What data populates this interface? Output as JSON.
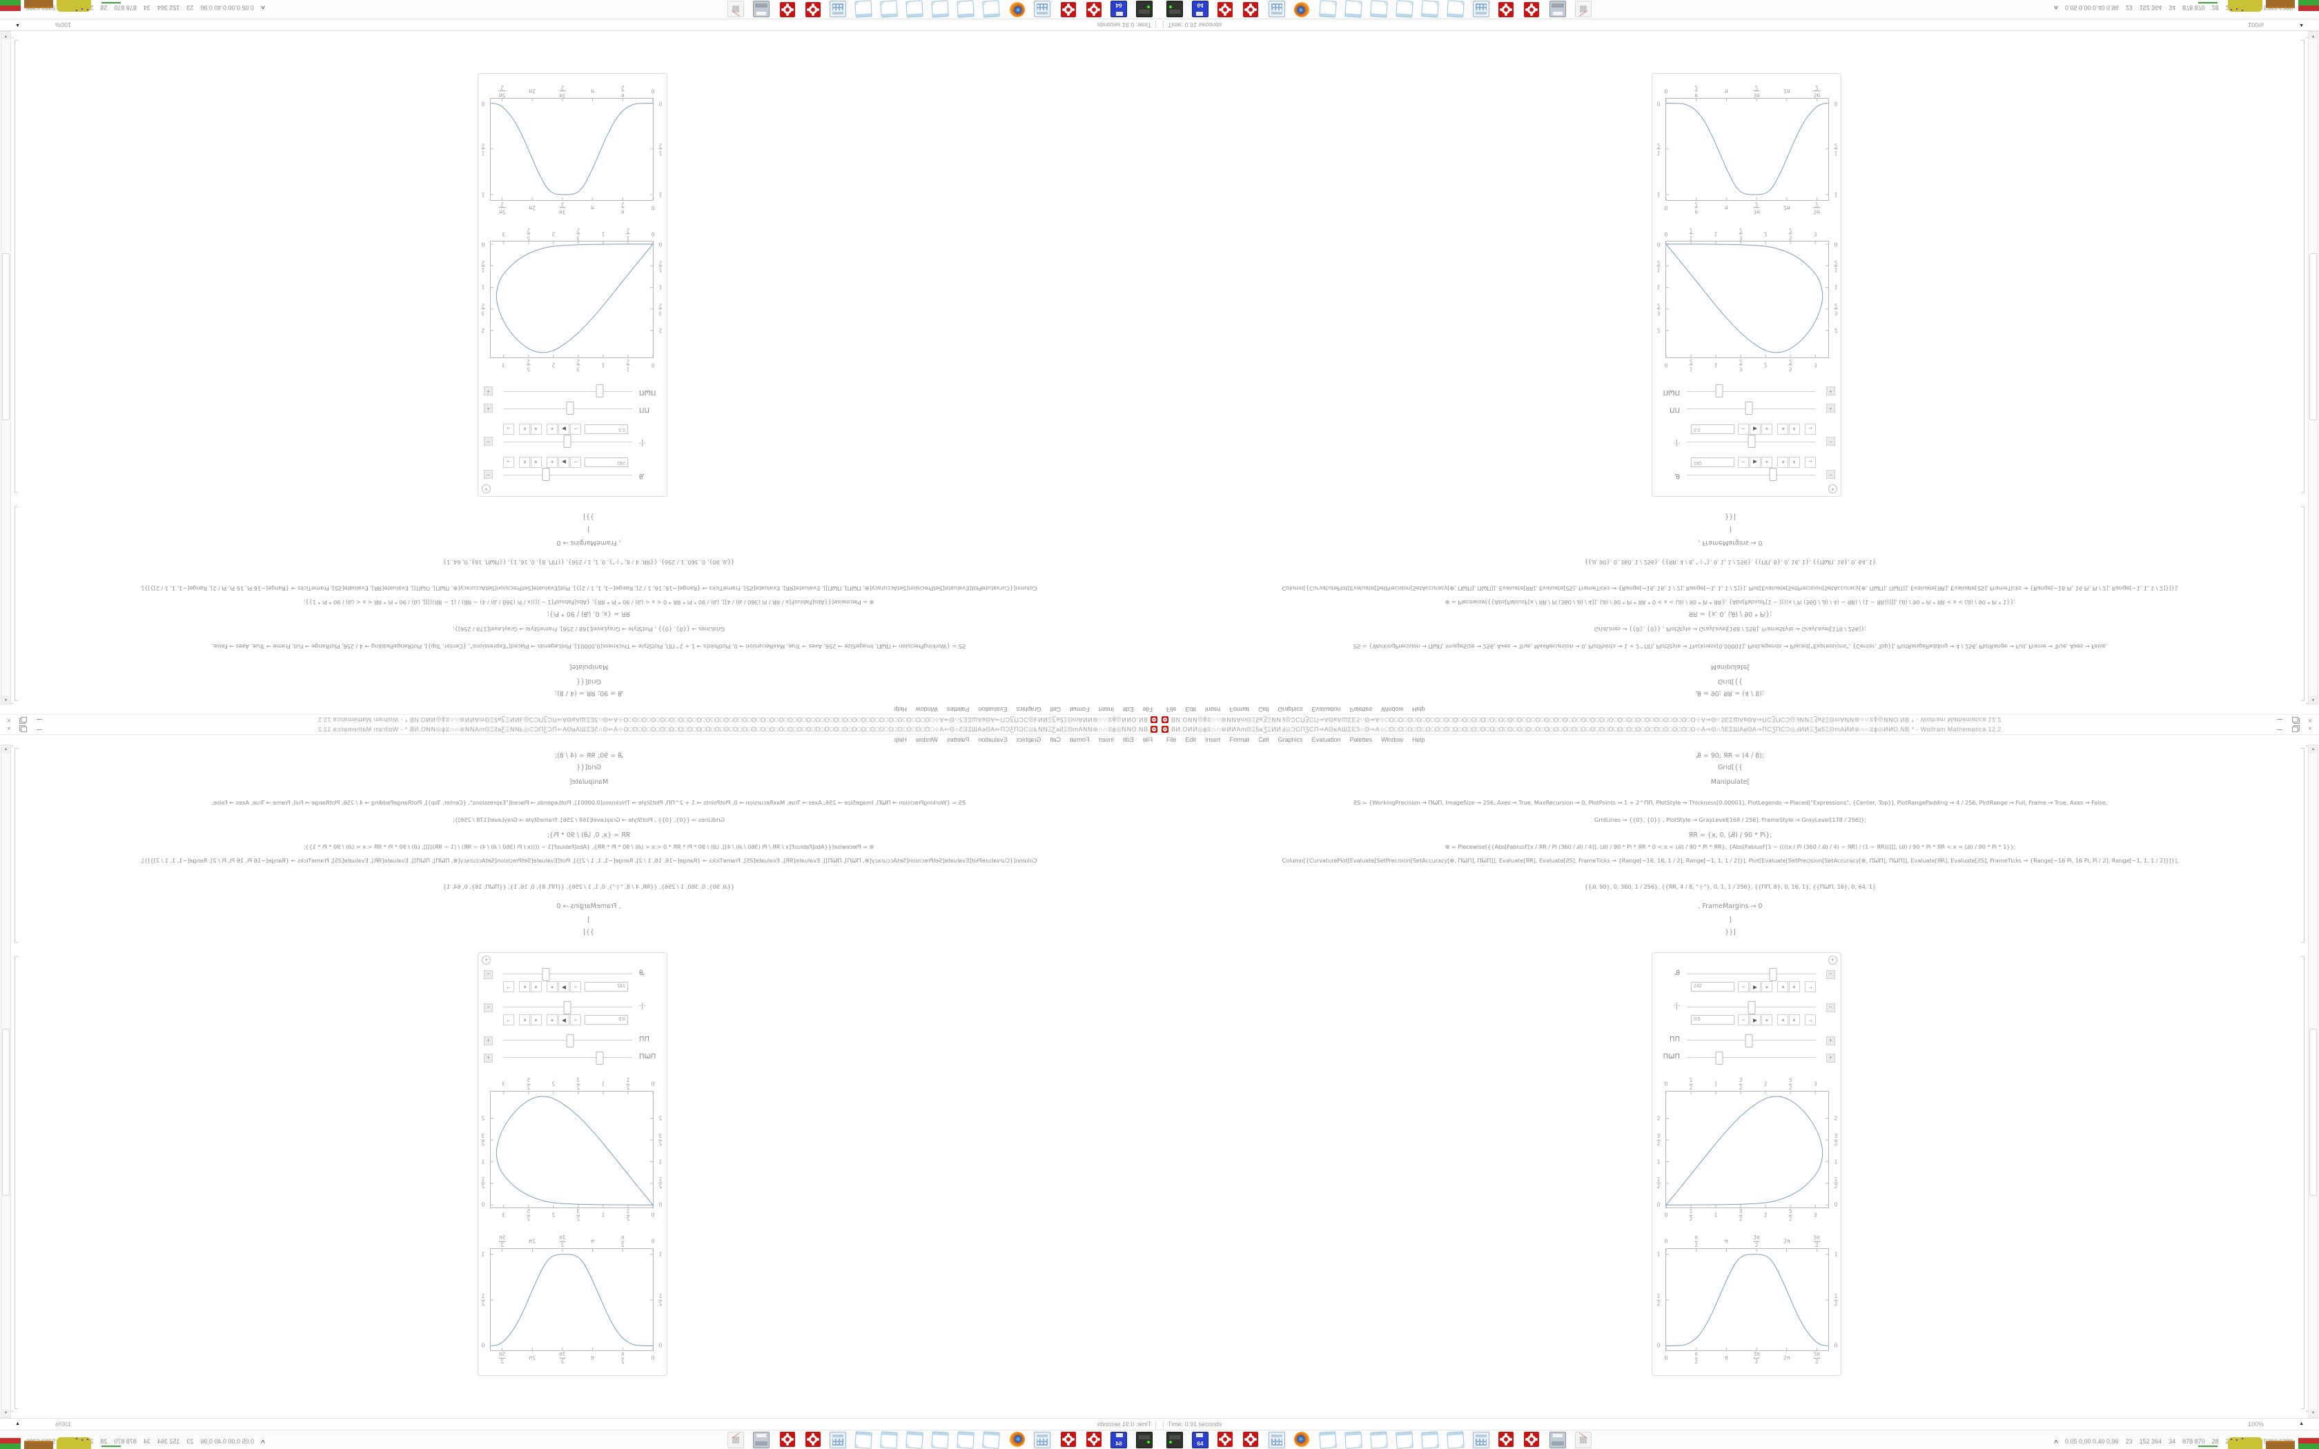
{
  "window": {
    "app": "Wolfram Mathematica 12.2",
    "title": "ВͶ.ОͶͶ◎ϕ⧖∩∩⊛ͶͶΑmΘΞ5ʁƷΞͶͶℲ◎ϽϹΠƷϹΠ⇒ΑΘʁΑШƩΕƼ∩Θ⇒Α⊹□O□O□O□O□O□O□O□O□O□O□O□O□O□O□O□O□O□O□O□O□O□O□O□O□O□O□O□O□O□O□O□O□O□O⊹Α⇒Θ∩ƼΕƩШΑʁΘΑ⇒ΠϹƷΠϹϽ◎ℲͶͶΞƷʁ5ΞΘmΑͶͶ⊛∩∩⧖ϕ◎ͶͶО.NB * - Wolfram Mathematica 12.2",
    "minimize": "–",
    "restore": "❐",
    "close": "×"
  },
  "menu": {
    "items": [
      "File",
      "Edit",
      "Insert",
      "Format",
      "Cell",
      "Graphics",
      "Evaluation",
      "Palettes",
      "Window",
      "Help"
    ]
  },
  "notebook": {
    "lines": [
      "Ꭿ = 90; ЯR = (4 / 8);",
      "Grid[{{",
      "Manipulate[",
      "ƧS = {WorkingPrecision → ΠѠΠ, ImageSize → 256, Axes → True, MaxRecursion → 0, PlotPoints → 1 + 2^ΠΠ, PlotStyle → Thickness[0.00001], PlotLegends → Placed[\"Expressions\", {Center, Top}], PlotRangePadding → 4 / 256, PlotRange → Full, Frame → True, Axes → False,",
      "GridLines → {{0}, {0}} , PlotStyle → GrayLevel[168 / 256], FrameStyle → GrayLevel[178 / 256]};",
      "ЯR = {x, 0, (Ꭿ) / 90 * Pi};",
      "⊕ = Piecewise[{{Abs[FabiusF[x / ЯR / Pi (360 / Ꭿ) / 4]], (Ꭿ) / 90 * Pi * ЯR * 0 < x < (Ꭿ) / 90 * Pi * ЯR}, {Abs[FabiusF[1 − ((((x / Pi (360 / Ꭿ) / 4) − ЯR) / (1 − ЯR))]]], (Ꭿ) / 90 * Pi * ЯR < x < (Ꭿ) / 90 * Pi * 1}};",
      "Column[{CurvaturePlot[Evaluate[SetPrecision[SetAccuracy[⊕, ΠѠΠ], ΠѠΠ]], Evaluate[ЯR], Evaluate[ƧS], FrameTicks → {Range[−16, 16, 1 / 2], Range[−1, 1, 1 / 2]}], Plot[Evaluate[SetPrecision[SetAccuracy[⊕, ΠѠΠ], ΠѠΠ]], Evaluate[ЯR], Evaluate[ƧS], FrameTicks → {Range[−16 Pi, 16 Pi, Pi / 2], Range[−1, 1, 1 / 2]}]}],",
      "{{Ꭿ, 90}, 0, 360, 1 / 256}, {{ЯR, 4 / 8, \"·|·\"}, 0, 1, 1 / 256}, {{ΠΠ, 8}, 0, 16, 1}, {{ΠѠΠ, 16}, 0, 64, 1}",
      ", FrameMargins → 0",
      "]",
      "}}]"
    ]
  },
  "manipulate": {
    "opener": "+",
    "steppers": [
      {
        "name": "decrement",
        "glyph": "−"
      },
      {
        "name": "play",
        "glyph": "▶"
      },
      {
        "name": "increment",
        "glyph": "+"
      },
      {
        "name": "faster",
        "glyph": "»",
        "rot": "up"
      },
      {
        "name": "slower",
        "glyph": "»",
        "rot": "down"
      },
      {
        "name": "direction",
        "glyph": "→"
      }
    ],
    "controls": [
      {
        "label": "Ꭿ",
        "percent": 67,
        "value": "242",
        "expanded": true,
        "toggle": "−"
      },
      {
        "label": "·|·",
        "percent": 50,
        "value": "0.5",
        "expanded": true,
        "toggle": "−"
      },
      {
        "label": "ΠΠ",
        "percent": 48,
        "expanded": false,
        "toggle": "+"
      },
      {
        "label": "ΠѠΠ",
        "percent": 25,
        "expanded": false,
        "toggle": "+"
      }
    ]
  },
  "chart_data": [
    {
      "type": "line",
      "title": "teardrop parametric curve (CurvaturePlot output)",
      "xlabel": "",
      "ylabel": "",
      "xlim": [
        0,
        3.26
      ],
      "ylim": [
        -0.06,
        2.62
      ],
      "grid": false,
      "legend": "none",
      "xticks": [
        [
          0,
          "0"
        ],
        [
          0.5,
          "1|2"
        ],
        [
          1,
          "1"
        ],
        [
          1.5,
          "3|2"
        ],
        [
          2,
          "2"
        ],
        [
          2.5,
          "5|2"
        ],
        [
          3,
          "3"
        ]
      ],
      "yticks": [
        [
          0,
          "0"
        ],
        [
          0.5,
          "1|2"
        ],
        [
          1,
          "1"
        ],
        [
          1.5,
          "3|2"
        ],
        [
          2,
          "2"
        ]
      ],
      "points": [
        [
          0,
          0
        ],
        [
          0.3,
          0.42
        ],
        [
          0.6,
          0.85
        ],
        [
          0.9,
          1.28
        ],
        [
          1.2,
          1.69
        ],
        [
          1.5,
          2.05
        ],
        [
          1.8,
          2.33
        ],
        [
          2.05,
          2.48
        ],
        [
          2.3,
          2.5
        ],
        [
          2.55,
          2.38
        ],
        [
          2.8,
          2.12
        ],
        [
          3.0,
          1.78
        ],
        [
          3.12,
          1.42
        ],
        [
          3.14,
          1.1
        ],
        [
          3.05,
          0.78
        ],
        [
          2.85,
          0.5
        ],
        [
          2.6,
          0.28
        ],
        [
          2.3,
          0.13
        ],
        [
          2.0,
          0.05
        ],
        [
          1.6,
          0.02
        ],
        [
          1.2,
          0.008
        ],
        [
          0.8,
          0.003
        ],
        [
          0.4,
          0.001
        ],
        [
          0,
          0
        ]
      ]
    },
    {
      "type": "line",
      "title": "Fabius function bump (Plot output)",
      "xlabel": "",
      "ylabel": "",
      "xlim": [
        0,
        8.45
      ],
      "ylim": [
        -0.05,
        1.06
      ],
      "grid": false,
      "legend": "none",
      "xticks": [
        [
          0,
          "0"
        ],
        [
          1.5708,
          "π|2"
        ],
        [
          3.1416,
          "π"
        ],
        [
          4.7124,
          "3π|2"
        ],
        [
          6.2832,
          "2π"
        ],
        [
          7.854,
          "5π|2"
        ]
      ],
      "yticks": [
        [
          0,
          "0"
        ],
        [
          0.5,
          "1|2"
        ],
        [
          1,
          "1"
        ]
      ],
      "points": [
        [
          0,
          0
        ],
        [
          0.8,
          0.005
        ],
        [
          1.2,
          0.03
        ],
        [
          1.6,
          0.09
        ],
        [
          2.0,
          0.2
        ],
        [
          2.4,
          0.36
        ],
        [
          2.8,
          0.55
        ],
        [
          3.2,
          0.74
        ],
        [
          3.6,
          0.9
        ],
        [
          3.9,
          0.97
        ],
        [
          4.2,
          0.995
        ],
        [
          4.6,
          1.0
        ],
        [
          5.0,
          0.995
        ],
        [
          5.3,
          0.97
        ],
        [
          5.6,
          0.9
        ],
        [
          6.0,
          0.74
        ],
        [
          6.4,
          0.55
        ],
        [
          6.8,
          0.36
        ],
        [
          7.2,
          0.2
        ],
        [
          7.6,
          0.09
        ],
        [
          7.9,
          0.03
        ],
        [
          8.2,
          0.005
        ],
        [
          8.4,
          0
        ]
      ]
    }
  ],
  "status": {
    "time": "Time: 0.91 seconds",
    "zoom": "100%",
    "zoom_arrow": "▲"
  },
  "taskbar": {
    "expand": "^",
    "stats": "0.05 0.00 0.40 0.96    23    152 364    34    878 870    28    24    37    34  5282 6389",
    "floppy_label": "64",
    "icons": [
      "drive-green",
      "floppy-64",
      "gear-red",
      "gear-red",
      "calculator",
      "firefox",
      "notepad",
      "notepad",
      "notepad",
      "notepad",
      "notepad",
      "notepad",
      "calculator",
      "gear-red",
      "gear-red",
      "printer",
      "plug-disabled"
    ]
  },
  "colors": {
    "curve": "#7d9cc0",
    "frame": "#b8b8b8",
    "gear_red": "#c41414",
    "monitor_yellow": "#c8c234",
    "monitor_green": "#3aa63a",
    "monitor_brown": "#a06a28",
    "monitor_red": "#c03030"
  }
}
